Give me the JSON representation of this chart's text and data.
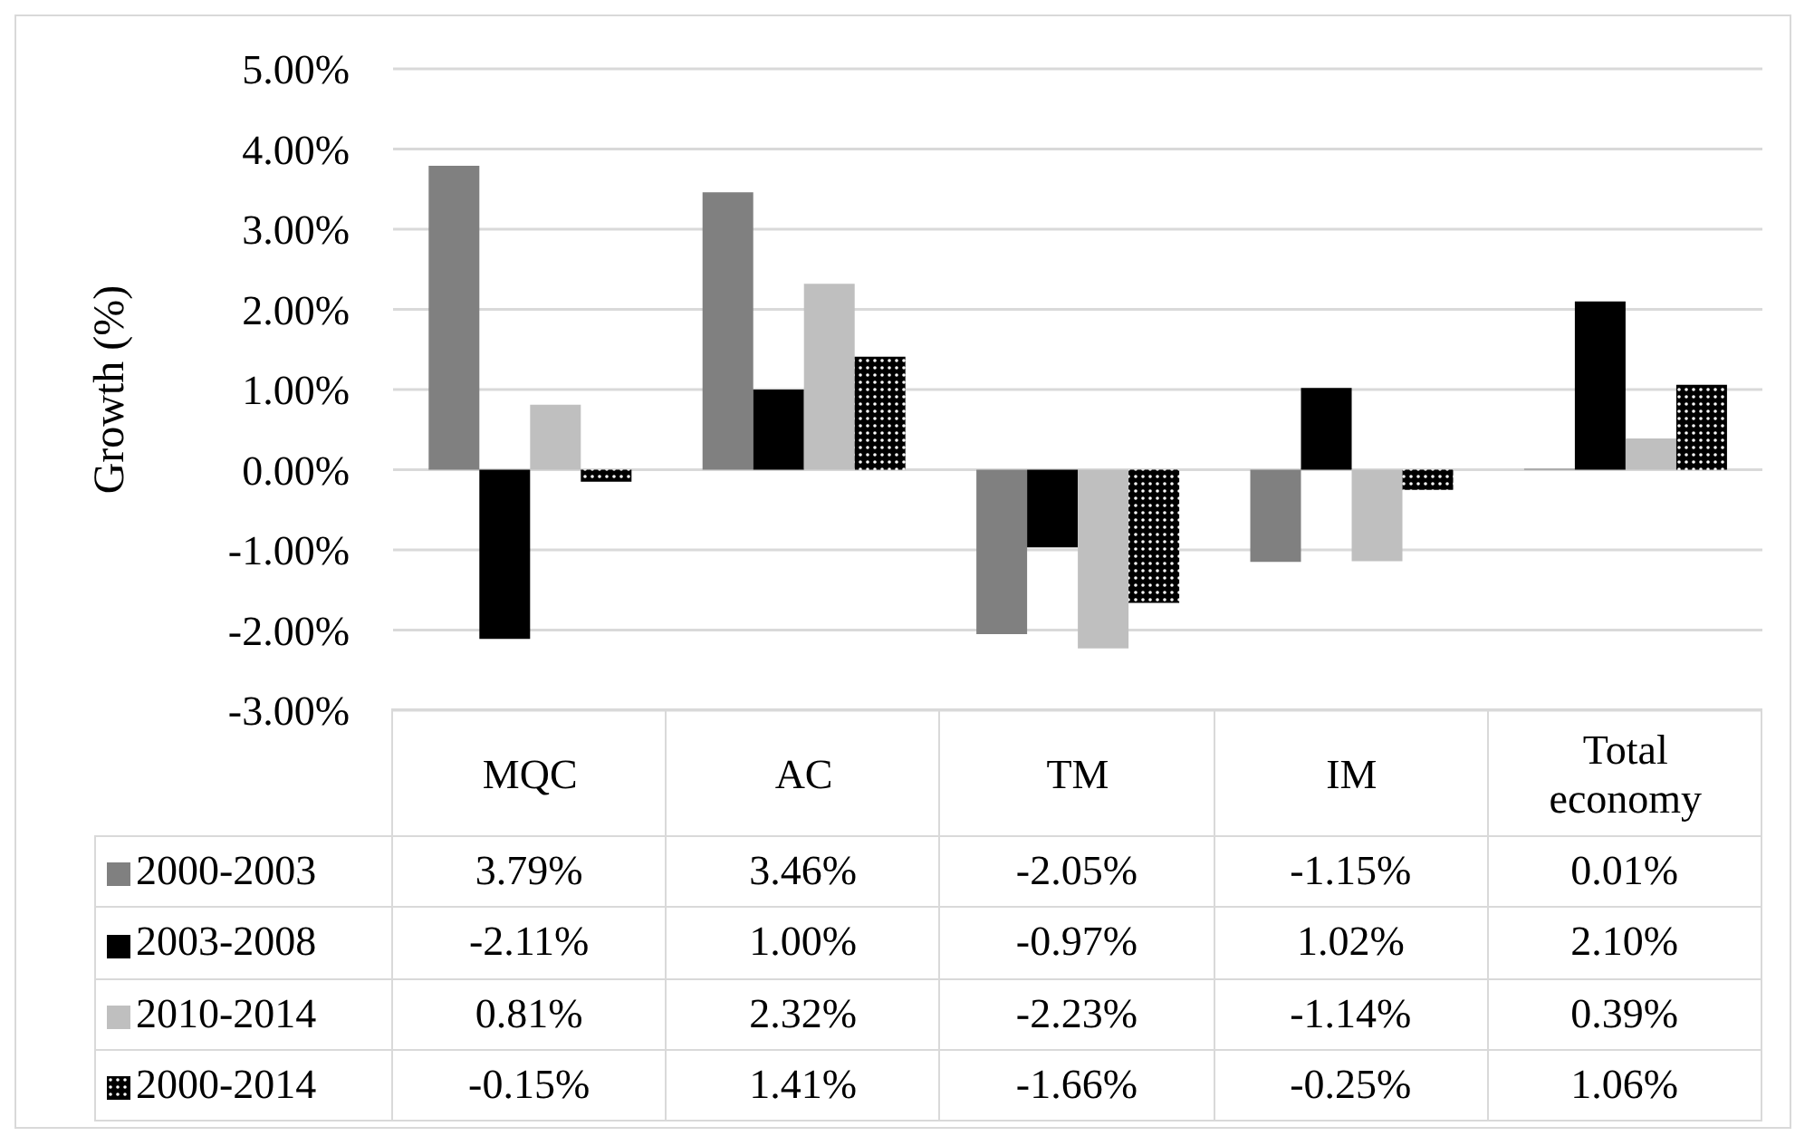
{
  "chart_data": {
    "type": "bar",
    "ylabel": "Growth (%)",
    "categories": [
      "MQC",
      "AC",
      "TM",
      "IM",
      "Total economy"
    ],
    "series": [
      {
        "name": "2000-2003",
        "color": "#808080",
        "values": [
          3.79,
          3.46,
          -2.05,
          -1.15,
          0.01
        ],
        "value_labels": [
          "3.79%",
          "3.46%",
          "-2.05%",
          "-1.15%",
          "0.01%"
        ]
      },
      {
        "name": "2003-2008",
        "color": "#000000",
        "values": [
          -2.11,
          1.0,
          -0.97,
          1.02,
          2.1
        ],
        "value_labels": [
          "-2.11%",
          "1.00%",
          "-0.97%",
          "1.02%",
          "2.10%"
        ]
      },
      {
        "name": "2010-2014",
        "color": "#bfbfbf",
        "values": [
          0.81,
          2.32,
          -2.23,
          -1.14,
          0.39
        ],
        "value_labels": [
          "0.81%",
          "2.32%",
          "-2.23%",
          "-1.14%",
          "0.39%"
        ]
      },
      {
        "name": "2000-2014",
        "color": "#000000",
        "values": [
          -0.15,
          1.41,
          -1.66,
          -0.25,
          1.06
        ],
        "value_labels": [
          "-0.15%",
          "1.41%",
          "-1.66%",
          "-0.25%",
          "1.06%"
        ]
      }
    ],
    "ylim": [
      -3,
      5
    ],
    "yticks": [
      {
        "value": 5,
        "label": "5.00%"
      },
      {
        "value": 4,
        "label": "4.00%"
      },
      {
        "value": 3,
        "label": "3.00%"
      },
      {
        "value": 2,
        "label": "2.00%"
      },
      {
        "value": 1,
        "label": "1.00%"
      },
      {
        "value": 0,
        "label": "0.00%"
      },
      {
        "value": -1,
        "label": "-1.00%"
      },
      {
        "value": -2,
        "label": "-2.00%"
      },
      {
        "value": -3,
        "label": "-3.00%"
      }
    ],
    "grid": "y",
    "legend": "bottom"
  }
}
